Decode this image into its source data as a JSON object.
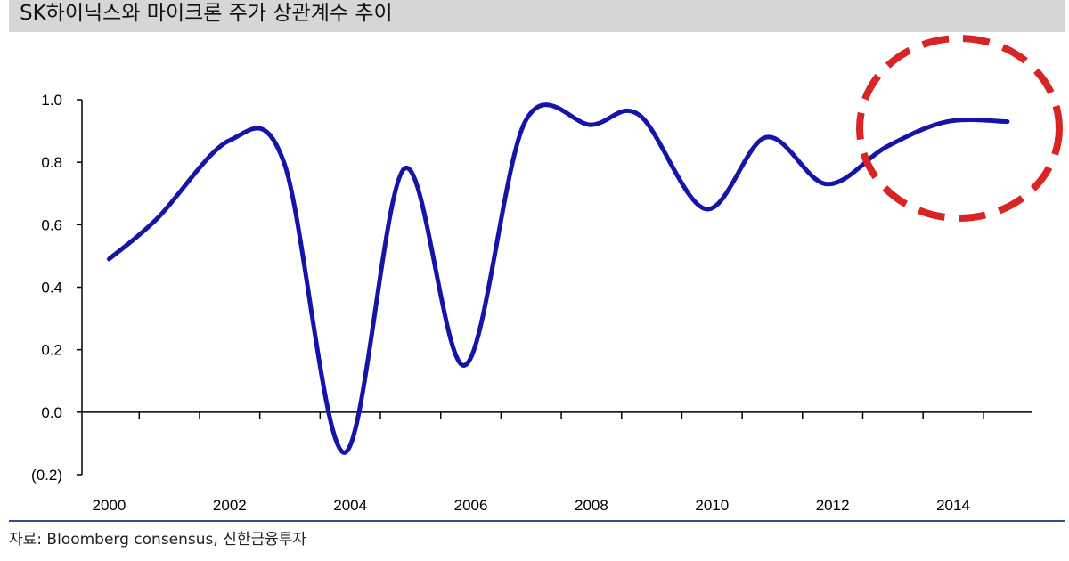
{
  "header": {
    "title": "SK하이닉스와 마이크론 주가 상관계수 추이"
  },
  "source": {
    "text": "자료: Bloomberg consensus, 신한금융투자"
  },
  "colors": {
    "line": "#1414a8",
    "highlight": "#d82424",
    "title_bg": "#d6d6d6",
    "rule": "#2f4f86"
  },
  "chart_data": {
    "type": "line",
    "x": [
      2000,
      2000.8,
      2002.0,
      2002.9,
      2003.9,
      2004.9,
      2005.9,
      2006.9,
      2008.0,
      2008.8,
      2009.9,
      2010.9,
      2011.9,
      2012.9,
      2013.9,
      2014.9
    ],
    "series": [
      {
        "values": [
          0.49,
          0.62,
          0.87,
          0.8,
          -0.13,
          0.78,
          0.15,
          0.93,
          0.92,
          0.95,
          0.65,
          0.88,
          0.73,
          0.85,
          0.93,
          0.93
        ]
      }
    ],
    "xticks": [
      "2000",
      "2002",
      "2004",
      "2006",
      "2008",
      "2010",
      "2012",
      "2014"
    ],
    "xtick_values": [
      2000,
      2002,
      2004,
      2006,
      2008,
      2010,
      2012,
      2014
    ],
    "yticks": [
      "1.0",
      "0.8",
      "0.6",
      "0.4",
      "0.2",
      "0.0",
      "(0.2)"
    ],
    "ytick_values": [
      1.0,
      0.8,
      0.6,
      0.4,
      0.2,
      0.0,
      -0.2
    ],
    "xlim": [
      1999.55,
      2015.3
    ],
    "ylim": [
      -0.2,
      1.0
    ],
    "annotation": "dashed red ellipse highlighting 2013–2015",
    "grid": false,
    "legend": "none"
  }
}
